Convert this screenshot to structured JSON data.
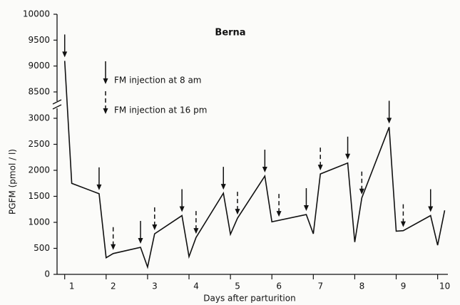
{
  "chart_data": {
    "type": "line",
    "title": "Berna",
    "ylabel": "PGFM (pmol / l)",
    "xlabel": "Days after parturition",
    "x": [
      1.0,
      1.17,
      1.83,
      2.0,
      2.17,
      2.83,
      3.0,
      3.17,
      3.83,
      4.0,
      4.17,
      4.83,
      5.0,
      5.17,
      5.83,
      6.0,
      6.83,
      7.0,
      7.17,
      7.83,
      8.0,
      8.17,
      8.83,
      9.0,
      9.17,
      9.83,
      10.0,
      10.17
    ],
    "series": [
      {
        "name": "Berna",
        "color": "#111111",
        "values": [
          9100,
          1750,
          1550,
          320,
          400,
          520,
          140,
          780,
          1130,
          340,
          710,
          1560,
          770,
          1080,
          1890,
          1010,
          1150,
          780,
          1930,
          2140,
          620,
          1470,
          2830,
          830,
          840,
          1130,
          560,
          1230
        ]
      }
    ],
    "xlim": [
      0.85,
      10.23
    ],
    "xticks": [
      1,
      2,
      3,
      4,
      5,
      6,
      7,
      8,
      9,
      10
    ],
    "ylim": [
      0,
      10000
    ],
    "y_break": [
      3000,
      8500
    ],
    "yticks": [
      0,
      500,
      1000,
      1500,
      2000,
      2500,
      3000,
      8500,
      9000,
      9500,
      10000
    ],
    "legend": [
      {
        "name": "FM injection at 8 am",
        "style": "solid"
      },
      {
        "name": "FM injection at 16 pm",
        "style": "dashed"
      }
    ],
    "injections_8am": [
      1.0,
      1.83,
      2.83,
      3.83,
      4.83,
      5.83,
      6.83,
      7.83,
      8.83,
      9.83
    ],
    "injections_16pm": [
      2.17,
      3.17,
      4.17,
      5.17,
      6.17,
      7.17,
      8.17,
      9.17
    ]
  }
}
